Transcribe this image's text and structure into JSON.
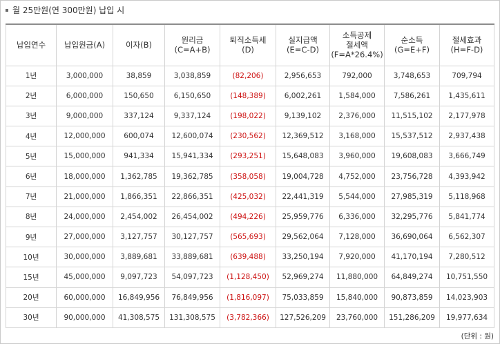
{
  "title": "월 25만원(연 300만원) 납입 시",
  "headers": [
    {
      "lines": [
        "납입연수"
      ]
    },
    {
      "lines": [
        "납입원금(A)"
      ]
    },
    {
      "lines": [
        "이자(B)"
      ]
    },
    {
      "lines": [
        "원리금",
        "(C=A+B)"
      ]
    },
    {
      "lines": [
        "퇴직소득세",
        "(D)"
      ]
    },
    {
      "lines": [
        "실지급액",
        "(E=C-D)"
      ]
    },
    {
      "lines": [
        "소득공제",
        "절세액",
        "(F=A*26.4%)"
      ]
    },
    {
      "lines": [
        "순소득",
        "(G=E+F)"
      ]
    },
    {
      "lines": [
        "절세효과",
        "(H=F-D)"
      ]
    }
  ],
  "rows": [
    [
      "1년",
      "3,000,000",
      "38,859",
      "3,038,859",
      "(82,206)",
      "2,956,653",
      "792,000",
      "3,748,653",
      "709,794"
    ],
    [
      "2년",
      "6,000,000",
      "150,650",
      "6,150,650",
      "(148,389)",
      "6,002,261",
      "1,584,000",
      "7,586,261",
      "1,435,611"
    ],
    [
      "3년",
      "9,000,000",
      "337,124",
      "9,337,124",
      "(198,022)",
      "9,139,102",
      "2,376,000",
      "11,515,102",
      "2,177,978"
    ],
    [
      "4년",
      "12,000,000",
      "600,074",
      "12,600,074",
      "(230,562)",
      "12,369,512",
      "3,168,000",
      "15,537,512",
      "2,937,438"
    ],
    [
      "5년",
      "15,000,000",
      "941,334",
      "15,941,334",
      "(293,251)",
      "15,648,083",
      "3,960,000",
      "19,608,083",
      "3,666,749"
    ],
    [
      "6년",
      "18,000,000",
      "1,362,785",
      "19,362,785",
      "(358,058)",
      "19,004,728",
      "4,752,000",
      "23,756,728",
      "4,393,942"
    ],
    [
      "7년",
      "21,000,000",
      "1,866,351",
      "22,866,351",
      "(425,032)",
      "22,441,319",
      "5,544,000",
      "27,985,319",
      "5,118,968"
    ],
    [
      "8년",
      "24,000,000",
      "2,454,002",
      "26,454,002",
      "(494,226)",
      "25,959,776",
      "6,336,000",
      "32,295,776",
      "5,841,774"
    ],
    [
      "9년",
      "27,000,000",
      "3,127,757",
      "30,127,757",
      "(565,693)",
      "29,562,064",
      "7,128,000",
      "36,690,064",
      "6,562,307"
    ],
    [
      "10년",
      "30,000,000",
      "3,889,681",
      "33,889,681",
      "(639,488)",
      "33,250,194",
      "7,920,000",
      "41,170,194",
      "7,280,512"
    ],
    [
      "15년",
      "45,000,000",
      "9,097,723",
      "54,097,723",
      "(1,128,450)",
      "52,969,274",
      "11,880,000",
      "64,849,274",
      "10,751,550"
    ],
    [
      "20년",
      "60,000,000",
      "16,849,956",
      "76,849,956",
      "(1,816,097)",
      "75,033,859",
      "15,840,000",
      "90,873,859",
      "14,023,903"
    ],
    [
      "30년",
      "90,000,000",
      "41,308,575",
      "131,308,575",
      "(3,782,366)",
      "127,526,209",
      "23,760,000",
      "151,286,209",
      "19,977,634"
    ]
  ],
  "unit_note": "(단위 : 원)",
  "colors": {
    "negative": "#cc1010",
    "border": "#d4d4d4",
    "header_top": "#8c8c8c"
  },
  "icons": {
    "title_bullet": "square-bullet-icon"
  }
}
